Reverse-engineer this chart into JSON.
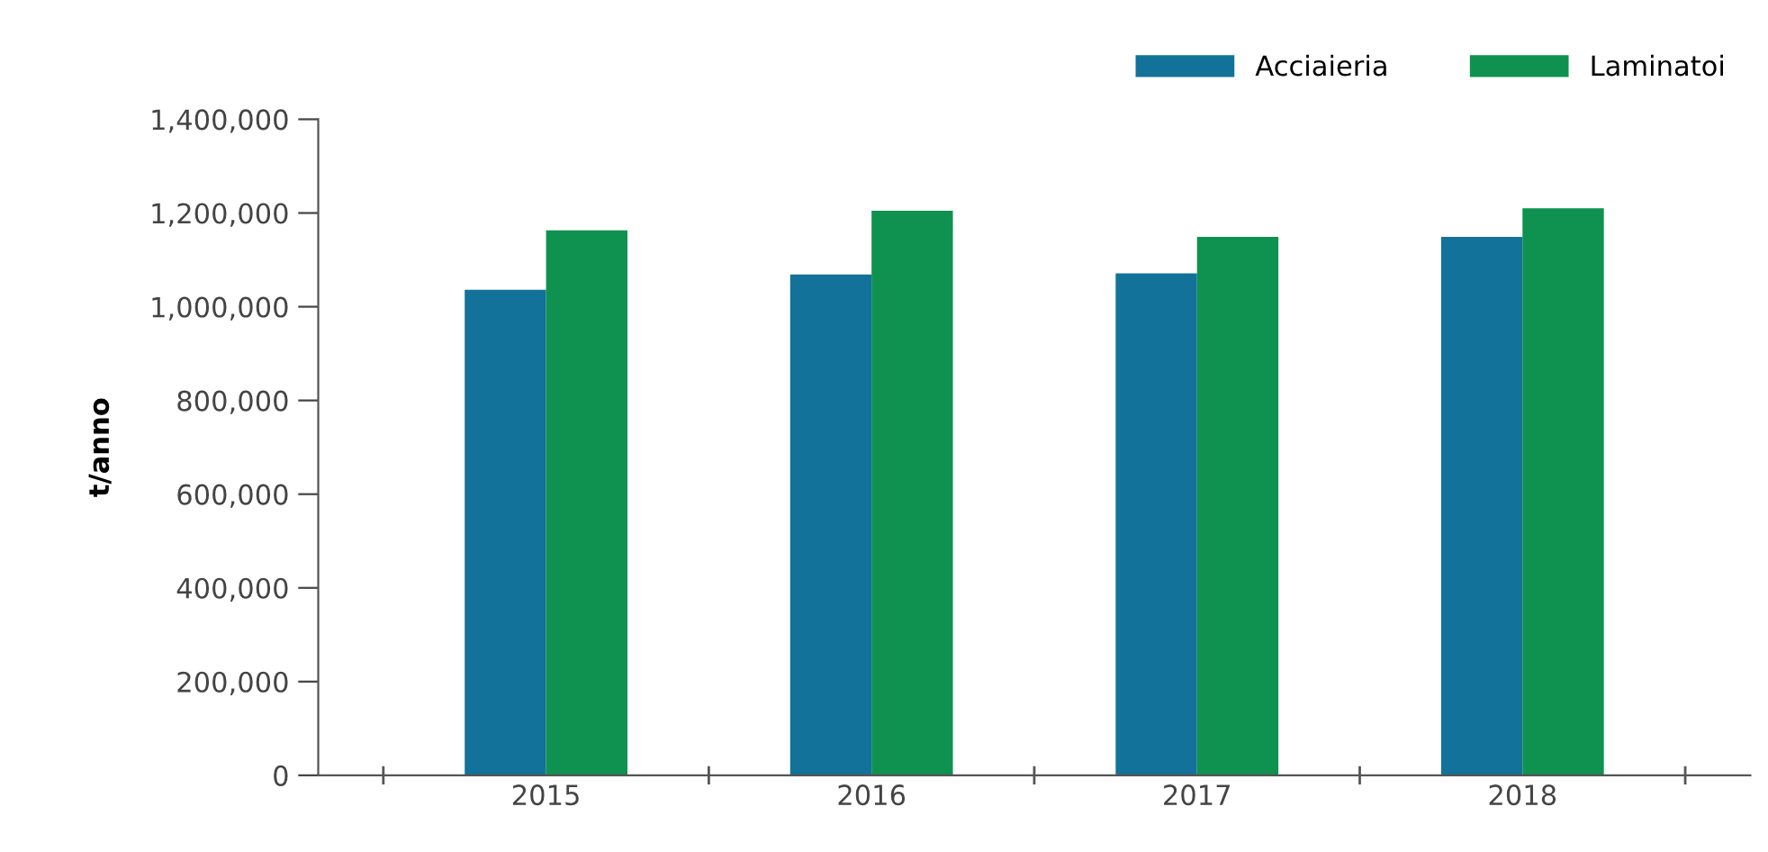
{
  "chart_data": {
    "type": "bar",
    "ylabel": "t/anno",
    "categories": [
      "2015",
      "2016",
      "2017",
      "2018"
    ],
    "series": [
      {
        "name": "Acciaieria",
        "color": "#12729a",
        "values": [
          1036000,
          1069000,
          1071000,
          1149000
        ]
      },
      {
        "name": "Laminatoi",
        "color": "#0f9150",
        "values": [
          1163000,
          1205000,
          1149000,
          1210000
        ]
      }
    ],
    "ylim": [
      0,
      1400000
    ],
    "yticks": [
      {
        "value": 0,
        "label": "0"
      },
      {
        "value": 200000,
        "label": "200,000"
      },
      {
        "value": 400000,
        "label": "400,000"
      },
      {
        "value": 600000,
        "label": "600,000"
      },
      {
        "value": 800000,
        "label": "800,000"
      },
      {
        "value": 1000000,
        "label": "1,000,000"
      },
      {
        "value": 1200000,
        "label": "1,200,000"
      },
      {
        "value": 1400000,
        "label": "1,400,000"
      }
    ],
    "grid": false,
    "legend": "top right"
  }
}
